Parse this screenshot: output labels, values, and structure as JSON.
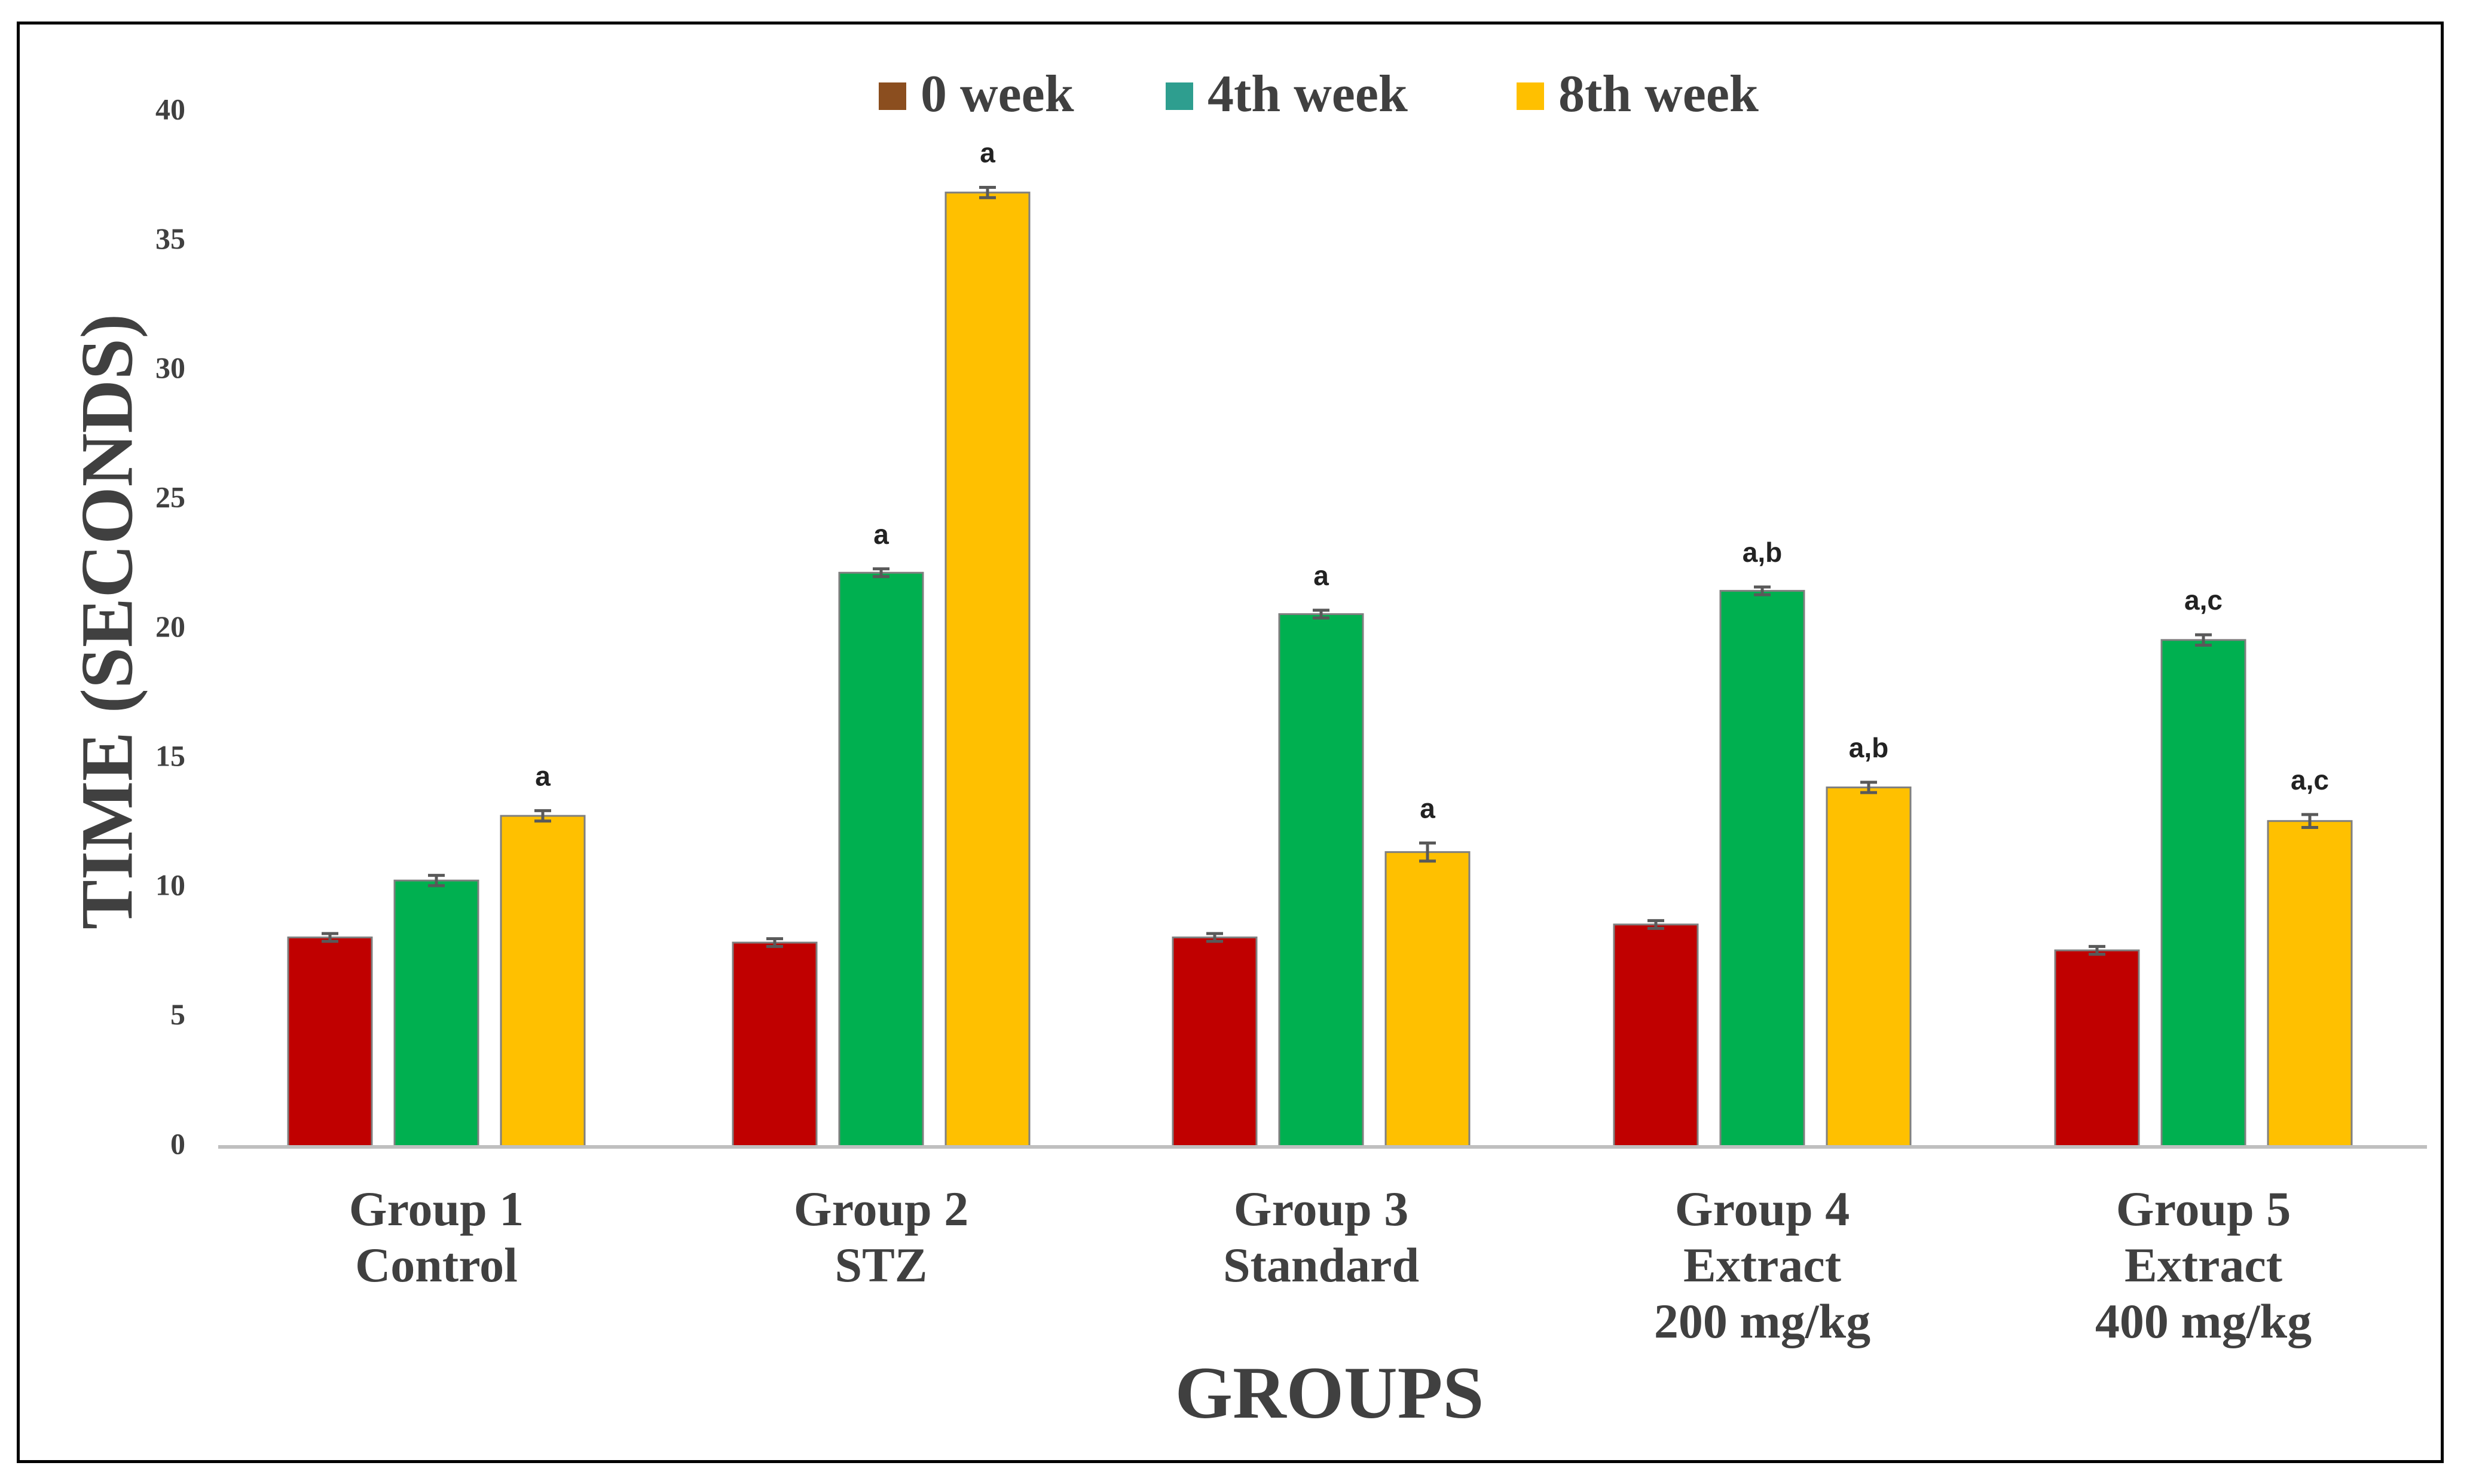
{
  "chart_data": {
    "type": "bar",
    "title": "",
    "xlabel": "GROUPS",
    "ylabel": "TIME (SECONDS)",
    "ylim": [
      0,
      40
    ],
    "yticks": [
      0,
      5,
      10,
      15,
      20,
      25,
      30,
      35,
      40
    ],
    "grid": false,
    "legend_position": "top-center",
    "categories": [
      [
        "Group 1",
        "Control"
      ],
      [
        "Group 2",
        "STZ"
      ],
      [
        "Group 3",
        "Standard"
      ],
      [
        "Group 4",
        "Extract",
        "200 mg/kg"
      ],
      [
        "Group 5",
        "Extract",
        "400 mg/kg"
      ]
    ],
    "series": [
      {
        "name": "0 week",
        "legend_color": "#8B4E1F",
        "color": "#C00000",
        "values": [
          8.1,
          7.9,
          8.1,
          8.6,
          7.6
        ],
        "errors": [
          0.15,
          0.15,
          0.15,
          0.15,
          0.15
        ],
        "labels": [
          "",
          "",
          "",
          "",
          ""
        ]
      },
      {
        "name": "4th week",
        "legend_color": "#2E9E8F",
        "color": "#00B050",
        "values": [
          10.3,
          22.2,
          20.6,
          21.5,
          19.6
        ],
        "errors": [
          0.2,
          0.15,
          0.15,
          0.15,
          0.2
        ],
        "labels": [
          "",
          "a",
          "a",
          "a,b",
          "a,c"
        ]
      },
      {
        "name": "8th week",
        "legend_color": "#FFC000",
        "color": "#FFC000",
        "values": [
          12.8,
          36.9,
          11.4,
          13.9,
          12.6
        ],
        "errors": [
          0.2,
          0.2,
          0.35,
          0.2,
          0.25
        ],
        "labels": [
          "a",
          "a",
          "a",
          "a,b",
          "a,c"
        ]
      }
    ]
  }
}
